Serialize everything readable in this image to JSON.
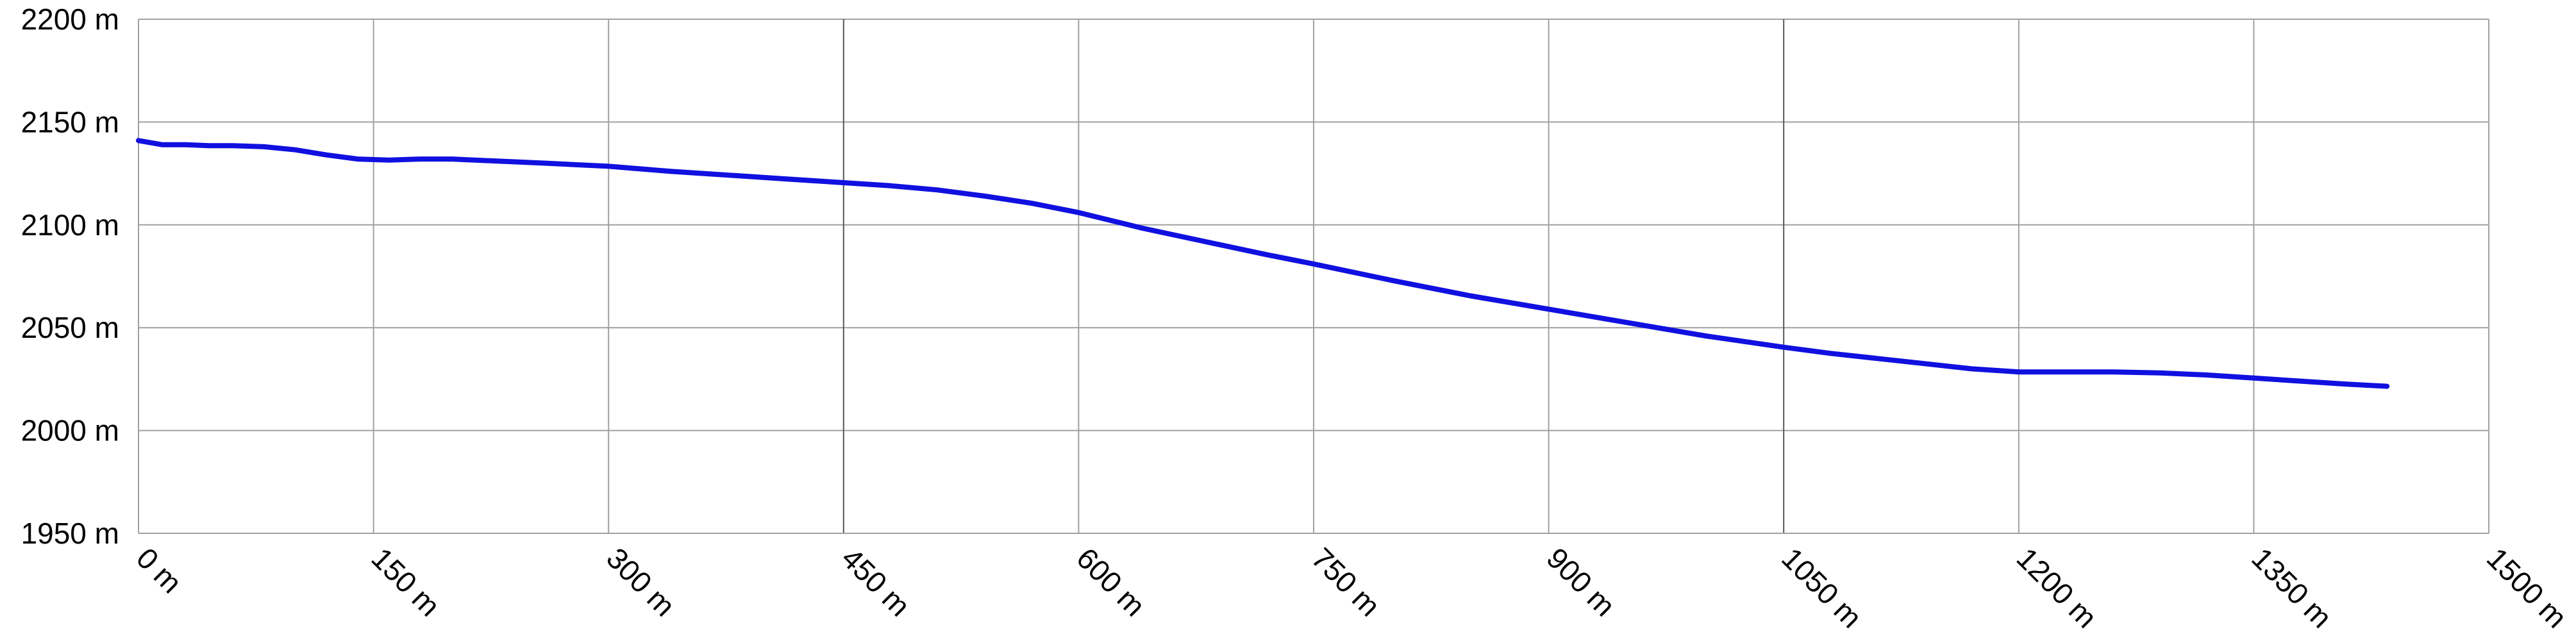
{
  "chart_data": {
    "type": "line",
    "title": "",
    "xlabel": "",
    "ylabel": "",
    "x_unit": "m",
    "y_unit": "m",
    "xlim": [
      0,
      1500
    ],
    "ylim": [
      1950,
      2200
    ],
    "x_ticks": [
      0,
      150,
      300,
      450,
      600,
      750,
      900,
      1050,
      1200,
      1350,
      1500
    ],
    "y_ticks": [
      1950,
      2000,
      2050,
      2100,
      2150,
      2200
    ],
    "x_tick_labels": [
      "0 m",
      "150 m",
      "300 m",
      "450 m",
      "600 m",
      "750 m",
      "900 m",
      "1050 m",
      "1200 m",
      "1350 m",
      "1500 m"
    ],
    "y_tick_labels": [
      "1950 m",
      "2000 m",
      "2050 m",
      "2100 m",
      "2150 m",
      "2200 m"
    ],
    "grid": true,
    "line_color": "#1010e0",
    "series": [
      {
        "x": [
          0,
          15,
          30,
          45,
          60,
          80,
          100,
          120,
          140,
          160,
          180,
          200,
          230,
          260,
          300,
          340,
          380,
          420,
          450,
          480,
          510,
          540,
          570,
          600,
          640,
          680,
          720,
          750,
          800,
          850,
          900,
          950,
          1000,
          1050,
          1080,
          1110,
          1140,
          1170,
          1200,
          1230,
          1260,
          1290,
          1320,
          1350,
          1380,
          1410,
          1435
        ],
        "y": [
          2141,
          2139,
          2139,
          2138.5,
          2138.5,
          2138,
          2136.5,
          2134,
          2132,
          2131.5,
          2132,
          2132,
          2131,
          2130,
          2128.5,
          2126,
          2124,
          2122,
          2120.5,
          2119,
          2117,
          2114,
          2110.5,
          2106,
          2098.5,
          2092,
          2085.5,
          2081,
          2073,
          2065.5,
          2059,
          2052.5,
          2046,
          2040.5,
          2037.5,
          2035,
          2032.5,
          2030,
          2028.5,
          2028.5,
          2028.5,
          2028,
          2027,
          2025.5,
          2024,
          2022.5,
          2021.5
        ]
      }
    ]
  }
}
